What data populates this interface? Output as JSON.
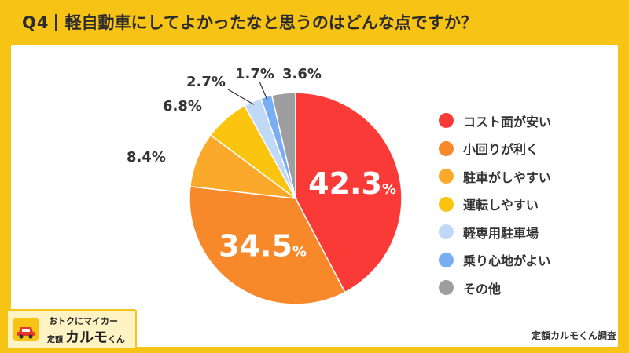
{
  "title": {
    "question_no": "Q4",
    "text": "軽自動車にしてよかったなと思うのはどんな点ですか？"
  },
  "chart_data": {
    "type": "pie",
    "categories": [
      "コスト面が安い",
      "小回りが利く",
      "駐車がしやすい",
      "運転しやすい",
      "軽専用駐車場",
      "乗り心地がよい",
      "その他"
    ],
    "values": [
      42.3,
      34.5,
      8.4,
      6.8,
      2.7,
      1.7,
      3.6
    ],
    "unit": "%",
    "colors": [
      "#f93a36",
      "#f8892a",
      "#fba92b",
      "#fbc50f",
      "#bfd9f7",
      "#79aef5",
      "#9e9e9e"
    ],
    "start": "12 o'clock",
    "direction": "clockwise",
    "legend_position": "right"
  },
  "logo": {
    "tagline": "おトクにマイカー",
    "prefix": "定額",
    "name": "カルモ",
    "suffix": "くん",
    "icon": "car-icon"
  },
  "source": "定額カルモくん調査"
}
